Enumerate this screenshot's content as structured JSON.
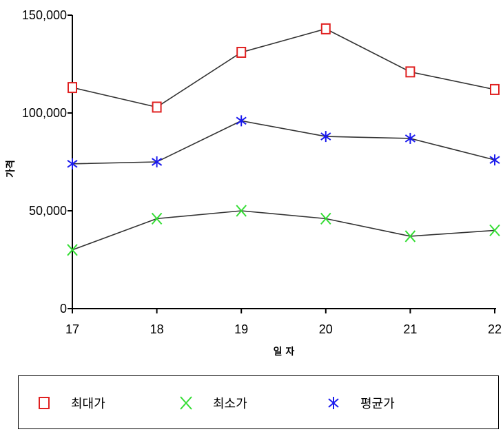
{
  "chart_data": {
    "type": "line",
    "xlabel": "일 자",
    "ylabel": "가격",
    "categories": [
      "17",
      "18",
      "19",
      "20",
      "21",
      "22"
    ],
    "ylim": [
      0,
      150000
    ],
    "yticks": [
      0,
      50000,
      100000,
      150000
    ],
    "ytick_labels": [
      "0",
      "50,000",
      "100,000",
      "150,000"
    ],
    "grid": false,
    "legend_position": "bottom",
    "series": [
      {
        "name": "최대가",
        "marker": "square",
        "color": "#e02020",
        "values": [
          113000,
          103000,
          131000,
          143000,
          121000,
          112000
        ]
      },
      {
        "name": "최소가",
        "marker": "x",
        "color": "#33dd33",
        "values": [
          30000,
          46000,
          50000,
          46000,
          37000,
          40000
        ]
      },
      {
        "name": "평균가",
        "marker": "asterisk",
        "color": "#1a1aee",
        "values": [
          74000,
          75000,
          96000,
          88000,
          87000,
          76000
        ]
      }
    ]
  }
}
